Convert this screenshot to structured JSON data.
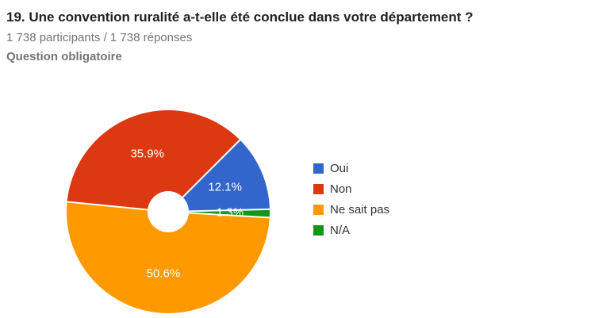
{
  "question": {
    "title": "19. Une convention ruralité a-t-elle été conclue dans votre département ?",
    "participants": "1 738 participants / 1 738 réponses",
    "required_label": "Question obligatoire"
  },
  "chart_data": {
    "type": "pie",
    "donut": true,
    "title": "19. Une convention ruralité a-t-elle été conclue dans votre département ?",
    "categories": [
      "Oui",
      "Non",
      "Ne sait pas",
      "N/A"
    ],
    "values": [
      12.1,
      35.9,
      50.6,
      1.3
    ],
    "labels": [
      "12.1%",
      "35.9%",
      "50.6%",
      "1.3%"
    ],
    "colors": [
      "#3366CC",
      "#DC3912",
      "#FF9900",
      "#109618"
    ],
    "legend_position": "right"
  },
  "legend": {
    "items": [
      {
        "label": "Oui",
        "color": "#3366CC"
      },
      {
        "label": "Non",
        "color": "#DC3912"
      },
      {
        "label": "Ne sait pas",
        "color": "#FF9900"
      },
      {
        "label": "N/A",
        "color": "#109618"
      }
    ]
  }
}
